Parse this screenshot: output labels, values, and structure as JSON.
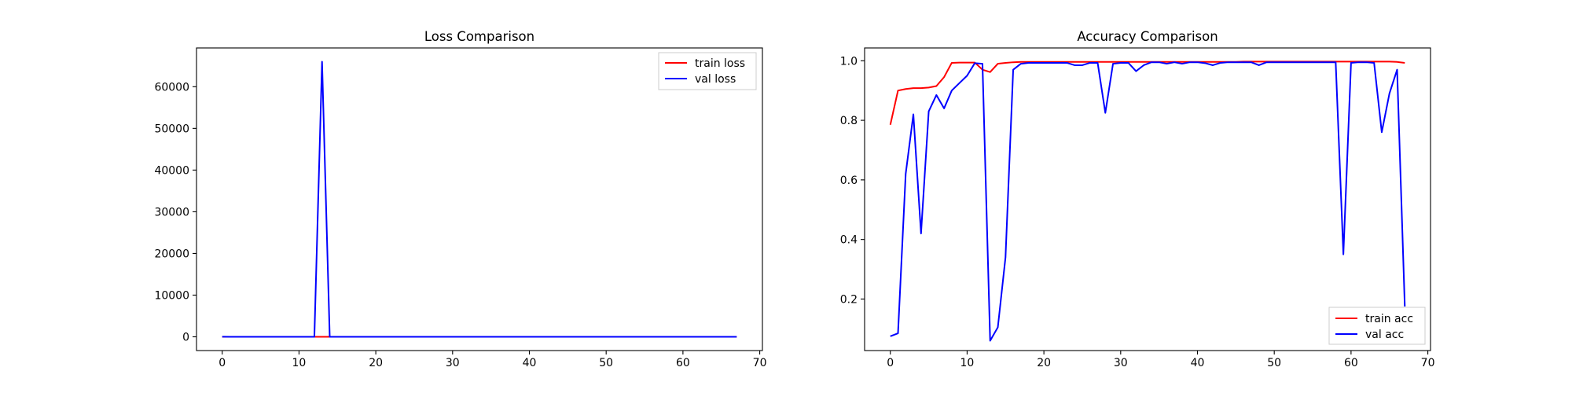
{
  "chart_data": [
    {
      "type": "line",
      "title": "Loss Comparison",
      "xlabel": "",
      "ylabel": "",
      "xlim": [
        -3.35,
        70.35
      ],
      "ylim": [
        -3300,
        69300
      ],
      "xticks": [
        0,
        10,
        20,
        30,
        40,
        50,
        60,
        70
      ],
      "yticks": [
        0,
        10000,
        20000,
        30000,
        40000,
        50000,
        60000
      ],
      "grid": false,
      "legend": "upper-right",
      "x": [
        0,
        1,
        2,
        3,
        4,
        5,
        6,
        7,
        8,
        9,
        10,
        11,
        12,
        13,
        14,
        15,
        16,
        17,
        18,
        19,
        20,
        21,
        22,
        23,
        24,
        25,
        26,
        27,
        28,
        29,
        30,
        31,
        32,
        33,
        34,
        35,
        36,
        37,
        38,
        39,
        40,
        41,
        42,
        43,
        44,
        45,
        46,
        47,
        48,
        49,
        50,
        51,
        52,
        53,
        54,
        55,
        56,
        57,
        58,
        59,
        60,
        61,
        62,
        63,
        64,
        65,
        66,
        67
      ],
      "series": [
        {
          "name": "train loss",
          "color": "#ff0000",
          "values": [
            0.5,
            0.25,
            0.25,
            0.25,
            0.25,
            0.25,
            0.2,
            0.15,
            0.05,
            0.05,
            0.05,
            0.05,
            0.08,
            0.1,
            0.05,
            0.05,
            0.05,
            0.05,
            0.05,
            0.05,
            0.05,
            0.05,
            0.05,
            0.05,
            0.05,
            0.05,
            0.05,
            0.05,
            0.05,
            0.05,
            0.05,
            0.05,
            0.05,
            0.05,
            0.05,
            0.05,
            0.05,
            0.05,
            0.05,
            0.05,
            0.05,
            0.05,
            0.05,
            0.05,
            0.05,
            0.05,
            0.05,
            0.05,
            0.05,
            0.05,
            0.05,
            0.05,
            0.05,
            0.05,
            0.05,
            0.05,
            0.05,
            0.05,
            0.05,
            0.05,
            0.05,
            0.05,
            0.05,
            0.05,
            0.05,
            0.05,
            0.05,
            0.05
          ]
        },
        {
          "name": "val loss",
          "color": "#0000ff",
          "values": [
            30,
            1,
            5,
            1,
            2,
            1,
            1,
            1,
            0.5,
            0.3,
            0.2,
            0.2,
            0.5,
            66000,
            5,
            3,
            0.2,
            0.1,
            0.1,
            0.1,
            0.1,
            0.1,
            0.1,
            0.1,
            0.1,
            0.1,
            0.1,
            0.5,
            0.1,
            0.1,
            0.1,
            0.1,
            0.1,
            0.1,
            0.1,
            0.1,
            0.1,
            0.1,
            0.1,
            0.1,
            0.1,
            0.1,
            0.1,
            0.1,
            0.1,
            0.1,
            0.1,
            0.1,
            0.1,
            0.1,
            0.1,
            0.1,
            0.1,
            0.1,
            0.1,
            0.1,
            0.1,
            0.1,
            0.1,
            3,
            0.1,
            0.1,
            0.1,
            0.1,
            1,
            0.5,
            0.2,
            5
          ]
        }
      ]
    },
    {
      "type": "line",
      "title": "Accuracy Comparison",
      "xlabel": "",
      "ylabel": "",
      "xlim": [
        -3.35,
        70.35
      ],
      "ylim": [
        0.027,
        1.043
      ],
      "xticks": [
        0,
        10,
        20,
        30,
        40,
        50,
        60,
        70
      ],
      "yticks": [
        0.2,
        0.4,
        0.6,
        0.8,
        1.0
      ],
      "ytick_labels": [
        "0.2",
        "0.4",
        "0.6",
        "0.8",
        "1.0"
      ],
      "grid": false,
      "legend": "lower-right",
      "x": [
        0,
        1,
        2,
        3,
        4,
        5,
        6,
        7,
        8,
        9,
        10,
        11,
        12,
        13,
        14,
        15,
        16,
        17,
        18,
        19,
        20,
        21,
        22,
        23,
        24,
        25,
        26,
        27,
        28,
        29,
        30,
        31,
        32,
        33,
        34,
        35,
        36,
        37,
        38,
        39,
        40,
        41,
        42,
        43,
        44,
        45,
        46,
        47,
        48,
        49,
        50,
        51,
        52,
        53,
        54,
        55,
        56,
        57,
        58,
        59,
        60,
        61,
        62,
        63,
        64,
        65,
        66,
        67
      ],
      "series": [
        {
          "name": "train acc",
          "color": "#ff0000",
          "values": [
            0.785,
            0.9,
            0.905,
            0.908,
            0.908,
            0.91,
            0.915,
            0.945,
            0.993,
            0.994,
            0.994,
            0.994,
            0.97,
            0.962,
            0.99,
            0.993,
            0.995,
            0.996,
            0.996,
            0.996,
            0.996,
            0.996,
            0.996,
            0.996,
            0.996,
            0.996,
            0.996,
            0.996,
            0.996,
            0.996,
            0.996,
            0.996,
            0.996,
            0.996,
            0.996,
            0.996,
            0.996,
            0.996,
            0.996,
            0.996,
            0.996,
            0.996,
            0.996,
            0.996,
            0.996,
            0.996,
            0.997,
            0.997,
            0.997,
            0.997,
            0.997,
            0.997,
            0.997,
            0.997,
            0.997,
            0.997,
            0.997,
            0.997,
            0.997,
            0.997,
            0.997,
            0.997,
            0.997,
            0.997,
            0.997,
            0.997,
            0.996,
            0.993
          ]
        },
        {
          "name": "val acc",
          "color": "#0000ff",
          "values": [
            0.075,
            0.085,
            0.62,
            0.82,
            0.42,
            0.83,
            0.885,
            0.84,
            0.9,
            0.925,
            0.95,
            0.992,
            0.99,
            0.06,
            0.105,
            0.34,
            0.97,
            0.99,
            0.993,
            0.993,
            0.993,
            0.993,
            0.993,
            0.993,
            0.985,
            0.985,
            0.993,
            0.993,
            0.825,
            0.99,
            0.993,
            0.993,
            0.965,
            0.985,
            0.995,
            0.995,
            0.99,
            0.995,
            0.99,
            0.995,
            0.995,
            0.992,
            0.985,
            0.993,
            0.995,
            0.995,
            0.995,
            0.995,
            0.985,
            0.995,
            0.995,
            0.995,
            0.995,
            0.995,
            0.995,
            0.995,
            0.995,
            0.995,
            0.995,
            0.35,
            0.993,
            0.995,
            0.995,
            0.993,
            0.76,
            0.89,
            0.97,
            0.175
          ]
        }
      ]
    }
  ]
}
